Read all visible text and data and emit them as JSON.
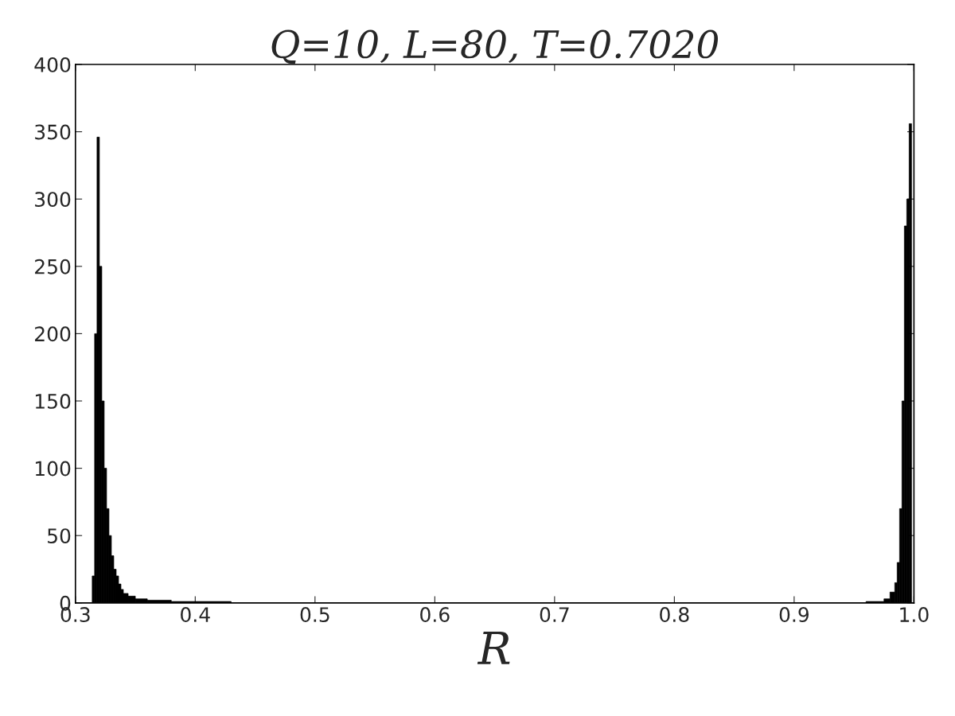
{
  "chart_data": {
    "type": "histogram",
    "title": "Q=10, L=80, T=0.7020",
    "xlabel": "R",
    "bins": [
      0.314,
      0.316,
      0.318,
      0.32,
      0.322,
      0.324,
      0.326,
      0.328,
      0.33,
      0.332,
      0.334,
      0.336,
      0.338,
      0.34,
      0.344,
      0.35,
      0.36,
      0.38,
      0.43,
      0.96,
      0.975,
      0.98,
      0.984,
      0.986,
      0.988,
      0.99,
      0.992,
      0.994,
      0.996,
      0.998
    ],
    "values": [
      20,
      200,
      346,
      250,
      150,
      100,
      70,
      50,
      35,
      25,
      20,
      14,
      10,
      7,
      5,
      3,
      2,
      1,
      0,
      1,
      3,
      8,
      15,
      30,
      70,
      150,
      280,
      300,
      356
    ],
    "color": "#000000",
    "xlim": [
      0.3,
      1.0
    ],
    "xticks": [
      {
        "value": 0.3,
        "label": "0.3"
      },
      {
        "value": 0.4,
        "label": "0.4"
      },
      {
        "value": 0.5,
        "label": "0.5"
      },
      {
        "value": 0.6,
        "label": "0.6"
      },
      {
        "value": 0.7,
        "label": "0.7"
      },
      {
        "value": 0.8,
        "label": "0.8"
      },
      {
        "value": 0.9,
        "label": "0.9"
      },
      {
        "value": 1.0,
        "label": "1.0"
      }
    ],
    "ylim": [
      0,
      400
    ],
    "yticks": [
      0,
      50,
      100,
      150,
      200,
      250,
      300,
      350,
      400
    ],
    "grid": false
  }
}
